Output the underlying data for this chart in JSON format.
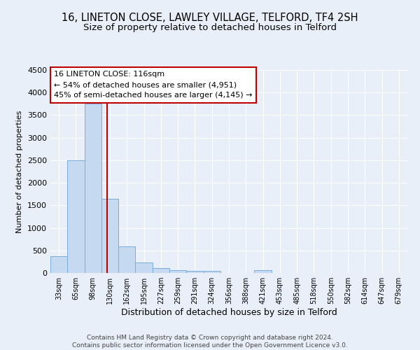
{
  "title1": "16, LINETON CLOSE, LAWLEY VILLAGE, TELFORD, TF4 2SH",
  "title2": "Size of property relative to detached houses in Telford",
  "xlabel": "Distribution of detached houses by size in Telford",
  "ylabel": "Number of detached properties",
  "categories": [
    "33sqm",
    "65sqm",
    "98sqm",
    "130sqm",
    "162sqm",
    "195sqm",
    "227sqm",
    "259sqm",
    "291sqm",
    "324sqm",
    "356sqm",
    "388sqm",
    "421sqm",
    "453sqm",
    "485sqm",
    "518sqm",
    "550sqm",
    "582sqm",
    "614sqm",
    "647sqm",
    "679sqm"
  ],
  "values": [
    375,
    2500,
    3750,
    1640,
    590,
    230,
    105,
    65,
    40,
    40,
    0,
    0,
    55,
    0,
    0,
    0,
    0,
    0,
    0,
    0,
    0
  ],
  "bar_color": "#c5d9f0",
  "bar_edge_color": "#7aadda",
  "vline_x": 2.85,
  "vline_color": "#c00000",
  "annotation_text": "16 LINETON CLOSE: 116sqm\n← 54% of detached houses are smaller (4,951)\n45% of semi-detached houses are larger (4,145) →",
  "annotation_box_color": "#c00000",
  "ylim": [
    0,
    4500
  ],
  "yticks": [
    0,
    500,
    1000,
    1500,
    2000,
    2500,
    3000,
    3500,
    4000,
    4500
  ],
  "footer": "Contains HM Land Registry data © Crown copyright and database right 2024.\nContains public sector information licensed under the Open Government Licence v3.0.",
  "bg_color": "#e8eff8",
  "grid_color": "#ffffff",
  "title1_fontsize": 10.5,
  "title2_fontsize": 9.5,
  "xlabel_fontsize": 9,
  "ylabel_fontsize": 8,
  "footer_fontsize": 6.5
}
